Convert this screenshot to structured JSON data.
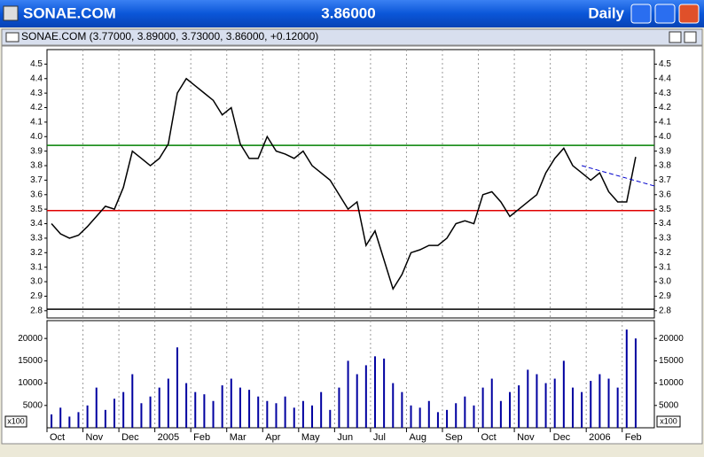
{
  "window": {
    "symbol": "SONAE.COM",
    "last": "3.86000",
    "period": "Daily",
    "subtitle": "SONAE.COM (3.77000, 3.89000, 3.73000, 3.86000, +0.12000)",
    "volume_unit": "x100"
  },
  "chart_data": [
    {
      "type": "line",
      "color": "#000000",
      "categories": [
        "Oct",
        null,
        null,
        null,
        "Nov",
        null,
        null,
        null,
        "Dec",
        null,
        null,
        null,
        "2005",
        null,
        null,
        null,
        "Feb",
        null,
        null,
        null,
        "Mar",
        null,
        null,
        null,
        "Apr",
        null,
        null,
        null,
        "May",
        null,
        null,
        null,
        "Jun",
        null,
        null,
        null,
        "Jul",
        null,
        null,
        null,
        "Aug",
        null,
        null,
        null,
        "Sep",
        null,
        null,
        null,
        "Oct",
        null,
        null,
        null,
        "Nov",
        null,
        null,
        null,
        "Dec",
        null,
        null,
        null,
        "2006",
        null,
        null,
        null,
        "Feb",
        null
      ],
      "values": [
        3.4,
        3.33,
        3.3,
        3.32,
        3.38,
        3.45,
        3.52,
        3.5,
        3.65,
        3.9,
        3.85,
        3.8,
        3.85,
        3.95,
        4.3,
        4.4,
        4.35,
        4.3,
        4.25,
        4.15,
        4.2,
        3.95,
        3.85,
        3.85,
        4.0,
        3.9,
        3.88,
        3.85,
        3.9,
        3.8,
        3.75,
        3.7,
        3.6,
        3.5,
        3.55,
        3.25,
        3.35,
        3.15,
        2.95,
        3.05,
        3.2,
        3.22,
        3.25,
        3.25,
        3.3,
        3.4,
        3.42,
        3.4,
        3.6,
        3.62,
        3.55,
        3.45,
        3.5,
        3.55,
        3.6,
        3.75,
        3.85,
        3.92,
        3.8,
        3.75,
        3.7,
        3.75,
        3.62,
        3.55,
        3.55,
        3.86
      ],
      "ylim": [
        2.75,
        4.6
      ],
      "yticks": [
        2.8,
        2.9,
        {
          "value": 3.0,
          "label": "3.0"
        },
        3.1,
        3.2,
        3.3,
        3.4,
        3.5,
        3.6,
        3.7,
        3.8,
        3.9,
        {
          "value": 4.0,
          "label": "4.0"
        },
        4.1,
        4.2,
        4.3,
        4.4,
        4.5
      ],
      "reference_lines": [
        {
          "value": 3.94,
          "color": "#008000"
        },
        {
          "value": 3.49,
          "color": "#e00000"
        },
        {
          "value": 2.81,
          "color": "#000000"
        }
      ],
      "trendline": {
        "values": [
          3.8,
          3.66
        ],
        "color": "#0000cc"
      },
      "grid": true
    },
    {
      "type": "bar",
      "color": "#0000a0",
      "values": [
        3000,
        4500,
        2500,
        3500,
        5000,
        9000,
        4000,
        6500,
        8000,
        12000,
        5500,
        7000,
        9000,
        11000,
        18000,
        10000,
        8000,
        7500,
        6000,
        9500,
        11000,
        9000,
        8500,
        7000,
        6000,
        5500,
        7000,
        4500,
        6000,
        5000,
        8000,
        4000,
        9000,
        15000,
        12000,
        14000,
        16000,
        15500,
        10000,
        8000,
        5000,
        4500,
        6000,
        3500,
        4000,
        5500,
        7000,
        5000,
        9000,
        11000,
        6000,
        8000,
        9500,
        13000,
        12000,
        10000,
        11000,
        15000,
        9000,
        8000,
        10500,
        12000,
        11000,
        9000,
        22000,
        20000
      ],
      "ylim": [
        0,
        24000
      ],
      "yticks": [
        5000,
        10000,
        15000,
        20000
      ]
    }
  ]
}
